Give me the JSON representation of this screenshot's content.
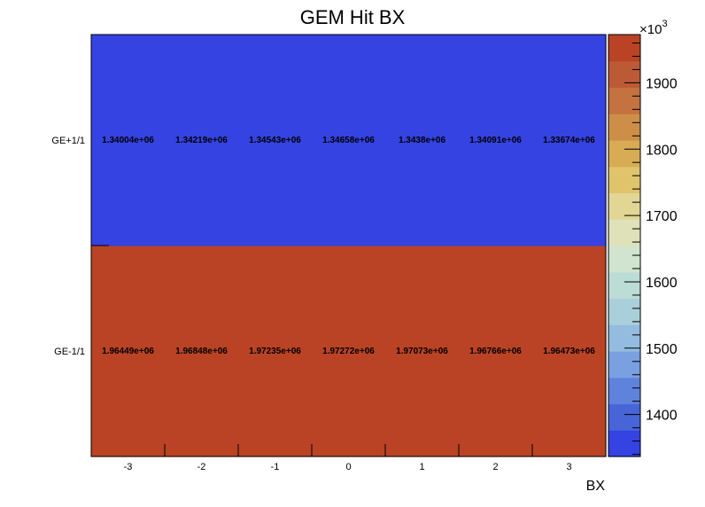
{
  "chart_data": {
    "type": "heatmap",
    "title": "GEM Hit BX",
    "xlabel": "BX",
    "ylabel": "",
    "x_categories": [
      "-3",
      "-2",
      "-1",
      "0",
      "1",
      "2",
      "3"
    ],
    "y_categories": [
      "GE-1/1",
      "GE+1/1"
    ],
    "z_values": [
      [
        1964490,
        1968480,
        1972350,
        1972720,
        1970730,
        1967660,
        1964730
      ],
      [
        1340040,
        1342190,
        1345430,
        1346580,
        1343800,
        1340910,
        1336740
      ]
    ],
    "cell_labels": [
      [
        "1.96449e+06",
        "1.96848e+06",
        "1.97235e+06",
        "1.97272e+06",
        "1.97073e+06",
        "1.96766e+06",
        "1.96473e+06"
      ],
      [
        "1.34004e+06",
        "1.34219e+06",
        "1.34543e+06",
        "1.34658e+06",
        "1.3438e+06",
        "1.34091e+06",
        "1.33674e+06"
      ]
    ],
    "zlim": [
      1336740,
      1972720
    ],
    "z_ticks": [
      1400,
      1500,
      1600,
      1700,
      1800,
      1900
    ],
    "z_tick_labels": [
      "1400",
      "1500",
      "1600",
      "1700",
      "1800",
      "1900"
    ],
    "z_multiplier": "×10",
    "z_multiplier_exp": "3",
    "colorbar_colors": [
      "#3443e2",
      "#4865d8",
      "#5f83dc",
      "#7aa0e2",
      "#94bcdf",
      "#a9cfda",
      "#bcdcd6",
      "#d0e4d0",
      "#dfe1b9",
      "#e1d694",
      "#dfc46c",
      "#d8ab55",
      "#cd8f47",
      "#c47240",
      "#bd5a36",
      "#b94324"
    ],
    "grid": false,
    "legend": "colorbar-right"
  }
}
